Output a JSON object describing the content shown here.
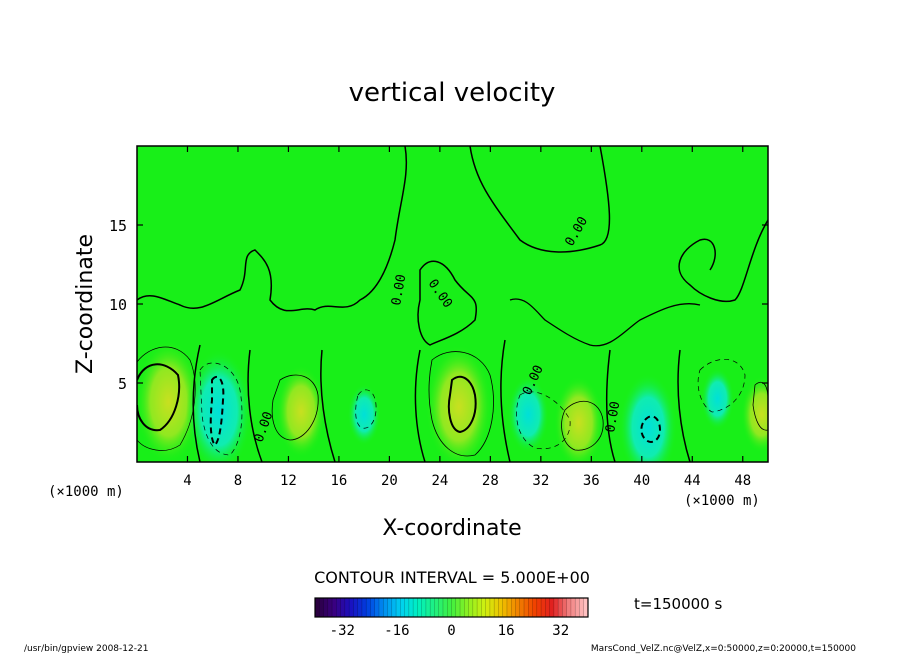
{
  "chart_data": {
    "type": "contour",
    "title": "vertical velocity",
    "xlabel": "X-coordinate",
    "ylabel": "Z-coordinate",
    "x_unit_bottom": "(×1000 m)",
    "x_unit_left": "(×1000 m)",
    "xlim": [
      0,
      50
    ],
    "ylim": [
      0,
      20
    ],
    "x_ticks": [
      4,
      8,
      12,
      16,
      20,
      24,
      28,
      32,
      36,
      40,
      44,
      48
    ],
    "y_ticks": [
      5,
      10,
      15
    ],
    "contour_interval_text": "CONTOUR INTERVAL = 5.000E+00",
    "contour_labels": [
      "0.00",
      "0.00",
      "0.00",
      "0.00",
      "0.00",
      "0.00",
      "0.00",
      "0.00"
    ],
    "colorbar": {
      "min": -40,
      "max": 40,
      "ticks": [
        -32,
        -16,
        0,
        16,
        32
      ],
      "colors": [
        "#2a0040",
        "#3a0080",
        "#1a10c0",
        "#0040e0",
        "#0090f0",
        "#00d0f0",
        "#00f0c0",
        "#20f080",
        "#40f040",
        "#90f020",
        "#d0f010",
        "#f0c000",
        "#f08000",
        "#f04000",
        "#e02020",
        "#f08080",
        "#ffc0c0"
      ]
    },
    "time_label": "t=150000 s",
    "field_background": "#18ef18",
    "features": [
      {
        "x": 2.5,
        "z": 3.8,
        "value": 12,
        "kind": "updraft"
      },
      {
        "x": 6.5,
        "z": 3.2,
        "value": -12,
        "kind": "downdraft"
      },
      {
        "x": 13,
        "z": 3.2,
        "value": 8,
        "kind": "updraft"
      },
      {
        "x": 18,
        "z": 3.0,
        "value": -4,
        "kind": "downdraft"
      },
      {
        "x": 25.5,
        "z": 3.5,
        "value": 12,
        "kind": "updraft"
      },
      {
        "x": 31,
        "z": 3.0,
        "value": -6,
        "kind": "downdraft"
      },
      {
        "x": 35,
        "z": 2.5,
        "value": 8,
        "kind": "updraft"
      },
      {
        "x": 40.5,
        "z": 2.2,
        "value": -10,
        "kind": "downdraft"
      },
      {
        "x": 46,
        "z": 4.0,
        "value": -4,
        "kind": "downdraft"
      },
      {
        "x": 49.5,
        "z": 3.0,
        "value": 6,
        "kind": "updraft"
      }
    ]
  },
  "footer": {
    "left": "/usr/bin/gpview  2008-12-21",
    "right": "MarsCond_VelZ.nc@VelZ,x=0:50000,z=0:20000,t=150000"
  }
}
